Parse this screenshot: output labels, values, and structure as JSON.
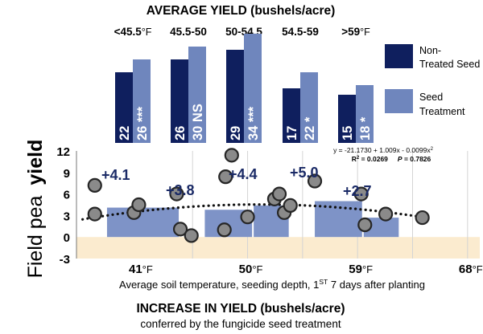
{
  "chart_data": [
    {
      "type": "bar",
      "title": "AVERAGE YIELD (bushels/acre)",
      "ylabel_prefix": "Field pea",
      "ylabel_bold": "yield",
      "categories": [
        {
          "main": "<45.5",
          "unit": "°F"
        },
        {
          "main": "45.5-50",
          "unit": ""
        },
        {
          "main": "50-54.5",
          "unit": ""
        },
        {
          "main": "54.5-59",
          "unit": ""
        },
        {
          "main": ">59",
          "unit": "°F"
        }
      ],
      "series": [
        {
          "name": "Non-Treated Seed",
          "legend_lines": [
            "Non-",
            "Treated Seed"
          ],
          "color": "#0f1f5e",
          "values": [
            22,
            26,
            29,
            17,
            15
          ],
          "labels": [
            "22",
            "26",
            "29",
            "17",
            "15"
          ]
        },
        {
          "name": "Seed Treatment",
          "legend_lines": [
            "Seed",
            "Treatment"
          ],
          "color": "#6f86bd",
          "values": [
            26,
            30,
            34,
            22,
            18
          ],
          "labels": [
            "26 ***",
            "30 NS",
            "34 ***",
            "22 *",
            "18 *"
          ]
        }
      ],
      "ylim": [
        0,
        34
      ]
    },
    {
      "type": "scatter",
      "xlabel": "Average soil temperature, seeding depth, 1ST 7 days after planting",
      "xlabel_parts": [
        "Average soil temperature, seeding depth, 1",
        "ST",
        " 7 days after planting"
      ],
      "xlim": [
        36,
        69
      ],
      "ylim": [
        -3,
        12
      ],
      "x_ticks": [
        {
          "value": 41,
          "main": "41",
          "unit": "°F"
        },
        {
          "value": 50,
          "main": "50",
          "unit": "°F"
        },
        {
          "value": 59,
          "main": "59",
          "unit": "°F"
        },
        {
          "value": 68,
          "main": "68",
          "unit": "°F"
        }
      ],
      "y_ticks": [
        "12",
        "9",
        "6",
        "3",
        "0",
        "-3"
      ],
      "y_tick_values": [
        12,
        9,
        6,
        3,
        0,
        -3
      ],
      "zero_band_color": "#fbebcf",
      "bars": {
        "color": "#7e93c7",
        "items": [
          {
            "x0": 38.5,
            "x1": 44.5,
            "value": 4.1,
            "label": "+4.1"
          },
          {
            "x0": 46.5,
            "x1": 50.5,
            "value": 3.8,
            "label": "+3.8"
          },
          {
            "x0": 50.5,
            "x1": 53.5,
            "value": 4.4,
            "label": "+4.4"
          },
          {
            "x0": 55.5,
            "x1": 59.5,
            "value": 5.0,
            "label": "+5.0"
          },
          {
            "x0": 59.5,
            "x1": 62.5,
            "value": 2.7,
            "label": "+2.7"
          }
        ]
      },
      "points": [
        {
          "x": 37.5,
          "y": 7.2
        },
        {
          "x": 37.5,
          "y": 3.2
        },
        {
          "x": 40.7,
          "y": 3.4
        },
        {
          "x": 41.1,
          "y": 4.5
        },
        {
          "x": 44.2,
          "y": 6.0
        },
        {
          "x": 44.5,
          "y": 1.1
        },
        {
          "x": 45.4,
          "y": 0.2
        },
        {
          "x": 48.2,
          "y": 8.4
        },
        {
          "x": 48.7,
          "y": 11.4
        },
        {
          "x": 48.1,
          "y": 1.0
        },
        {
          "x": 50.0,
          "y": 2.8
        },
        {
          "x": 52.2,
          "y": 5.3
        },
        {
          "x": 52.6,
          "y": 6.0
        },
        {
          "x": 53.0,
          "y": 3.4
        },
        {
          "x": 53.5,
          "y": 4.4
        },
        {
          "x": 55.5,
          "y": 7.8
        },
        {
          "x": 59.3,
          "y": 6.0
        },
        {
          "x": 59.6,
          "y": 1.7
        },
        {
          "x": 61.3,
          "y": 3.2
        },
        {
          "x": 64.3,
          "y": 2.7
        }
      ],
      "trend": {
        "intercept": -21.173,
        "b1": 1.009,
        "b2": -0.0099,
        "x_range": [
          36.5,
          64.5
        ]
      },
      "equation": {
        "text": "y = -21.1730 + 1.009x - 0.0099x2",
        "eq_main": "y = -21.1730 + 1.009x - 0.0099x",
        "eq_sup": "2",
        "r2_prefix": "R",
        "r2_sup": "2",
        "r2_value": " = 0.0269",
        "p_label": "P",
        "p_value": " = 0.7826"
      },
      "caption_title": "INCREASE IN YIELD (bushels/acre)",
      "caption_subtitle": "conferred by the fungicide seed treatment"
    }
  ]
}
